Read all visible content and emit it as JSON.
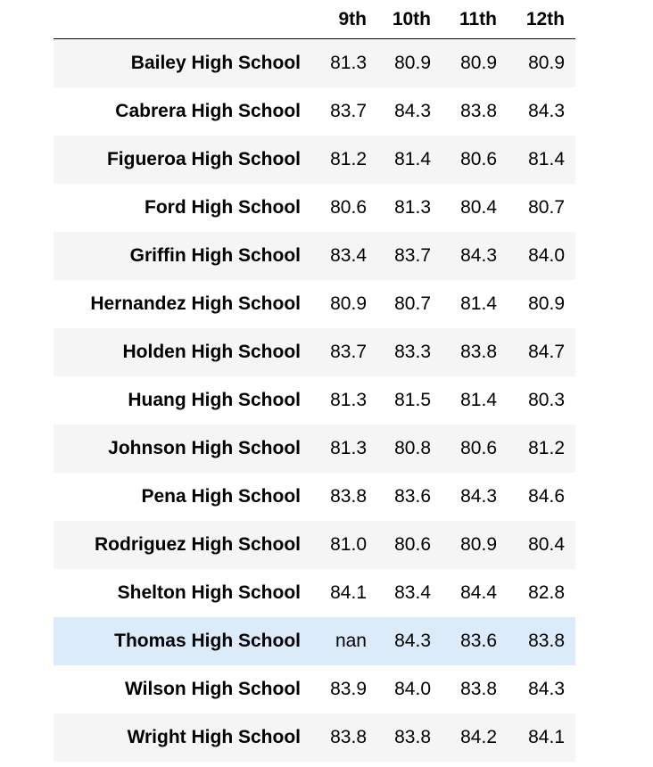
{
  "table": {
    "columns": [
      "",
      "9th",
      "10th",
      "11th",
      "12th"
    ],
    "rows": [
      {
        "school": "Bailey High School",
        "values": [
          "81.3",
          "80.9",
          "80.9",
          "80.9"
        ]
      },
      {
        "school": "Cabrera High School",
        "values": [
          "83.7",
          "84.3",
          "83.8",
          "84.3"
        ]
      },
      {
        "school": "Figueroa High School",
        "values": [
          "81.2",
          "81.4",
          "80.6",
          "81.4"
        ]
      },
      {
        "school": "Ford High School",
        "values": [
          "80.6",
          "81.3",
          "80.4",
          "80.7"
        ]
      },
      {
        "school": "Griffin High School",
        "values": [
          "83.4",
          "83.7",
          "84.3",
          "84.0"
        ]
      },
      {
        "school": "Hernandez High School",
        "values": [
          "80.9",
          "80.7",
          "81.4",
          "80.9"
        ]
      },
      {
        "school": "Holden High School",
        "values": [
          "83.7",
          "83.3",
          "83.8",
          "84.7"
        ]
      },
      {
        "school": "Huang High School",
        "values": [
          "81.3",
          "81.5",
          "81.4",
          "80.3"
        ]
      },
      {
        "school": "Johnson High School",
        "values": [
          "81.3",
          "80.8",
          "80.6",
          "81.2"
        ]
      },
      {
        "school": "Pena High School",
        "values": [
          "83.8",
          "83.6",
          "84.3",
          "84.6"
        ]
      },
      {
        "school": "Rodriguez High School",
        "values": [
          "81.0",
          "80.6",
          "80.9",
          "80.4"
        ]
      },
      {
        "school": "Shelton High School",
        "values": [
          "84.1",
          "83.4",
          "84.4",
          "82.8"
        ]
      },
      {
        "school": "Thomas High School",
        "values": [
          "nan",
          "84.3",
          "83.6",
          "83.8"
        ],
        "highlighted": true
      },
      {
        "school": "Wilson High School",
        "values": [
          "83.9",
          "84.0",
          "83.8",
          "84.3"
        ]
      },
      {
        "school": "Wright High School",
        "values": [
          "83.8",
          "83.8",
          "84.2",
          "84.1"
        ]
      }
    ]
  },
  "colors": {
    "row_stripe": "#f5f5f5",
    "row_plain": "#ffffff",
    "row_hover": "#dcebfa",
    "header_rule": "#000000"
  }
}
